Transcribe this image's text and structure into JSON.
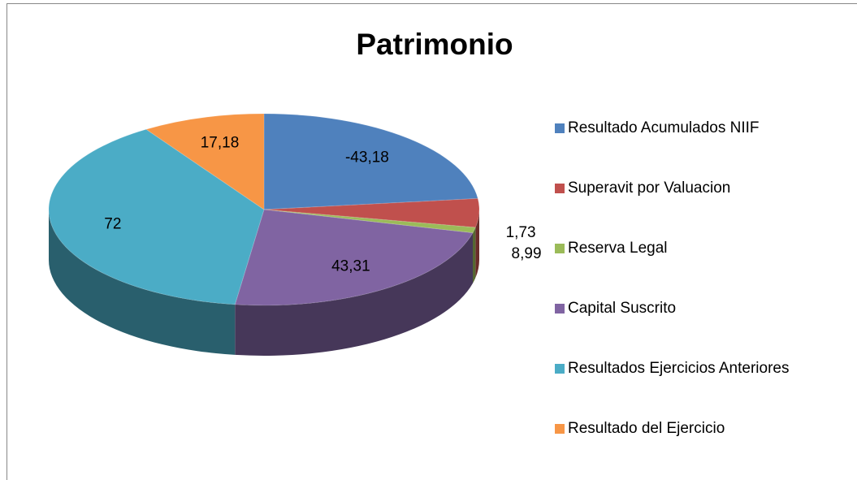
{
  "chart_data": {
    "type": "pie",
    "title": "Patrimonio",
    "categories": [
      "Resultado Acumulados NIIF",
      "Superavit por Valuacion",
      "Reserva Legal",
      "Capital Suscrito",
      "Resultados Ejercicios Anteriores",
      "Resultado del Ejercicio"
    ],
    "values": [
      -43.18,
      8.99,
      1.73,
      43.31,
      72,
      17.18
    ],
    "value_labels": [
      "-43,18",
      "8,99",
      "1,73",
      "43,31",
      "72",
      "17,18"
    ],
    "colors": [
      "#4f81bd",
      "#c0504d",
      "#9bbb59",
      "#8064a2",
      "#4bacc6",
      "#f79646"
    ],
    "legend": "right"
  }
}
